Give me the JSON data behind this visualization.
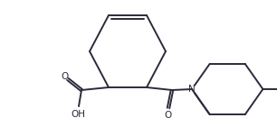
{
  "bg_color": "#ffffff",
  "line_color": "#2b2b3b",
  "line_width": 1.4,
  "text_color": "#2b2b3b",
  "font_size": 7.5,
  "figsize": [
    3.06,
    1.51
  ],
  "dpi": 100,
  "xlim": [
    0,
    306
  ],
  "ylim": [
    0,
    151
  ]
}
